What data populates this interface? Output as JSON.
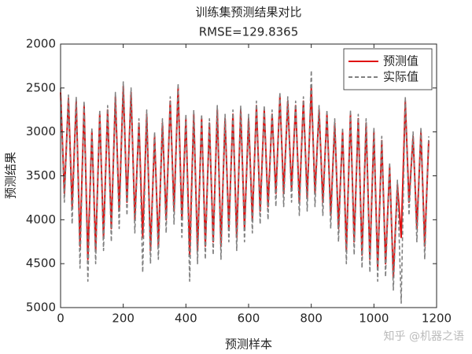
{
  "chart_data": {
    "type": "line",
    "title": "训练集预测结果对比",
    "subtitle": "RMSE=129.8365",
    "xlabel": "预测样本",
    "ylabel": "预测结果",
    "watermark": "知乎 @机器之语",
    "xlim": [
      0,
      1200
    ],
    "xticks": [
      0,
      200,
      400,
      600,
      800,
      1000,
      1200
    ],
    "ylim": [
      2000,
      5000
    ],
    "yticks": [
      2000,
      2500,
      3000,
      3500,
      4000,
      4500,
      5000
    ],
    "y_reversed": true,
    "legend": "upper right",
    "x": [
      0,
      12,
      25,
      37,
      50,
      62,
      75,
      87,
      100,
      112,
      125,
      137,
      150,
      162,
      175,
      187,
      200,
      212,
      225,
      237,
      250,
      262,
      275,
      287,
      300,
      312,
      325,
      337,
      350,
      362,
      375,
      387,
      400,
      412,
      425,
      437,
      450,
      462,
      475,
      487,
      500,
      512,
      525,
      537,
      550,
      562,
      575,
      587,
      600,
      612,
      625,
      637,
      650,
      662,
      675,
      687,
      700,
      712,
      725,
      737,
      750,
      762,
      775,
      787,
      800,
      812,
      825,
      837,
      850,
      862,
      875,
      887,
      900,
      912,
      925,
      937,
      950,
      962,
      975,
      987,
      1000,
      1012,
      1025,
      1037,
      1050,
      1062,
      1075,
      1087,
      1100,
      1112,
      1125,
      1137,
      1150,
      1162,
      1175
    ],
    "series": [
      {
        "name": "预测值",
        "color": "#e01010",
        "dash": "solid",
        "values": [
          2550,
          3700,
          2620,
          3850,
          2650,
          4300,
          2700,
          4450,
          3000,
          4350,
          2800,
          4200,
          2750,
          4100,
          2600,
          3900,
          2480,
          3800,
          2550,
          4000,
          2900,
          4200,
          2800,
          4350,
          3050,
          4300,
          2900,
          4000,
          2650,
          3900,
          2500,
          4000,
          2850,
          4400,
          2800,
          4350,
          2850,
          4300,
          2900,
          4250,
          2750,
          4300,
          2850,
          4100,
          2800,
          4200,
          2750,
          4100,
          2850,
          4000,
          2700,
          3900,
          2750,
          3850,
          2800,
          3700,
          2600,
          3700,
          2650,
          3650,
          2700,
          3800,
          2650,
          3750,
          2500,
          3700,
          2750,
          3800,
          2800,
          3950,
          2900,
          4100,
          3000,
          4350,
          2800,
          4250,
          2850,
          4400,
          2900,
          4450,
          3000,
          4550,
          3100,
          4500,
          3400,
          4650,
          3600,
          4200,
          2650,
          3800,
          3050,
          4100,
          3000,
          4300,
          3100
        ]
      },
      {
        "name": "实际值",
        "color": "#808080",
        "dash": "dashed",
        "values": [
          2500,
          3800,
          2580,
          4050,
          2600,
          4550,
          2650,
          4700,
          2950,
          4500,
          2750,
          4350,
          2700,
          4250,
          2550,
          4100,
          2430,
          3950,
          2500,
          4150,
          2850,
          4600,
          2750,
          4500,
          3000,
          4450,
          2850,
          4150,
          2600,
          4050,
          2450,
          4200,
          2800,
          4700,
          2750,
          4500,
          2800,
          4450,
          2850,
          4400,
          2700,
          4450,
          2800,
          4250,
          2750,
          4350,
          2700,
          4250,
          2800,
          4150,
          2650,
          4050,
          2700,
          4000,
          2750,
          3850,
          2550,
          3850,
          2600,
          3800,
          2650,
          3950,
          2600,
          3900,
          2300,
          3850,
          2700,
          3950,
          2750,
          4100,
          2850,
          4250,
          2950,
          4500,
          2750,
          4400,
          2800,
          4550,
          2850,
          4600,
          2950,
          4700,
          3050,
          4650,
          3350,
          4800,
          3550,
          4950,
          2600,
          3950,
          3000,
          4250,
          2950,
          4450,
          3050
        ]
      }
    ]
  }
}
